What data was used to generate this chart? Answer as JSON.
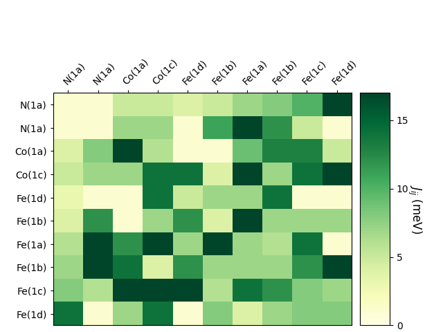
{
  "row_labels": [
    "N(1a)",
    "N(1a)",
    "Co(1a)",
    "Co(1c)",
    "Fe(1d)",
    "Fe(1b)",
    "Fe(1a)",
    "Fe(1b)",
    "Fe(1c)",
    "Fe(1d)"
  ],
  "col_labels": [
    "N(1a)",
    "N(1a)",
    "Co(1a)",
    "Co(1c)",
    "Fe(1d)",
    "Fe(1b)",
    "Fe(1a)",
    "Fe(1b)",
    "Fe(1c)",
    "Fe(1d)"
  ],
  "data": [
    [
      1.0,
      1.0,
      5.0,
      5.0,
      4.0,
      5.0,
      7.0,
      8.0,
      10.0,
      17.0
    ],
    [
      1.0,
      1.0,
      7.0,
      7.0,
      1.0,
      11.0,
      17.0,
      12.0,
      5.0,
      1.0
    ],
    [
      4.0,
      8.0,
      17.0,
      6.0,
      1.0,
      1.0,
      9.0,
      13.0,
      13.0,
      5.0
    ],
    [
      5.0,
      7.0,
      7.0,
      14.0,
      14.0,
      4.0,
      17.0,
      7.0,
      14.0,
      17.0
    ],
    [
      3.0,
      1.0,
      1.0,
      14.0,
      5.0,
      7.0,
      7.0,
      14.0,
      1.0,
      1.0
    ],
    [
      4.0,
      12.0,
      1.0,
      7.0,
      12.0,
      4.0,
      17.0,
      7.0,
      7.0,
      7.0
    ],
    [
      6.0,
      17.0,
      12.0,
      17.0,
      7.0,
      17.0,
      7.0,
      6.0,
      14.0,
      1.0
    ],
    [
      7.0,
      17.0,
      14.0,
      4.0,
      12.0,
      7.0,
      7.0,
      7.0,
      12.0,
      17.0
    ],
    [
      8.0,
      6.0,
      17.0,
      17.0,
      17.0,
      6.0,
      14.0,
      12.0,
      8.0,
      7.0
    ],
    [
      14.0,
      1.0,
      7.0,
      14.0,
      1.0,
      8.0,
      4.0,
      7.0,
      8.0,
      8.0
    ]
  ],
  "vmin": 0,
  "vmax": 17,
  "cmap": "YlGn",
  "colorbar_label": "$J_{ij}$ (meV)",
  "colorbar_ticks": [
    0,
    5,
    10,
    15
  ],
  "figsize": [
    6.4,
    4.8
  ],
  "dpi": 100,
  "title_fontsize": 10,
  "tick_fontsize": 10,
  "cbar_fontsize": 12
}
